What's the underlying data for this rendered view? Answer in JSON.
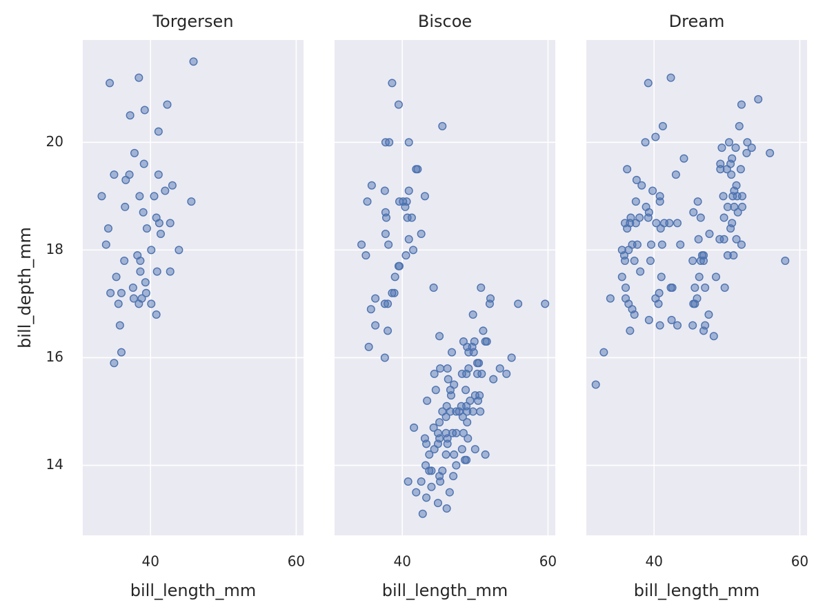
{
  "chart_data": [
    {
      "type": "scatter",
      "title": "Torgersen",
      "x_label": "bill_length_mm",
      "y_label": "bill_depth_mm",
      "color": "#4c72b0",
      "grid": true,
      "xlim": [
        30.7,
        61.0
      ],
      "ylim": [
        12.7,
        21.9
      ],
      "xticks": [
        40,
        60
      ],
      "yticks": [
        14,
        16,
        18,
        20
      ],
      "x": [
        34.4,
        38.4,
        45.9,
        42.3,
        37.2,
        39.2,
        41.1,
        37.8,
        35.0,
        37.1,
        36.6,
        39.1,
        41.1,
        43.0,
        42.0,
        33.3,
        38.5,
        40.5,
        45.6,
        36.5,
        39.0,
        40.8,
        41.2,
        42.7,
        41.4,
        34.2,
        39.5,
        33.9,
        40.1,
        43.9,
        38.2,
        38.6,
        36.4,
        38.6,
        40.9,
        42.7,
        35.3,
        39.3,
        37.6,
        34.5,
        36.0,
        39.4,
        37.7,
        38.8,
        38.4,
        35.6,
        40.1,
        40.8,
        35.8,
        36.0,
        35.0
      ],
      "values": [
        21.1,
        21.2,
        21.5,
        20.7,
        20.5,
        20.6,
        20.2,
        19.8,
        19.4,
        19.4,
        19.3,
        19.6,
        19.4,
        19.2,
        19.1,
        19.0,
        19.0,
        19.0,
        18.9,
        18.8,
        18.7,
        18.6,
        18.5,
        18.5,
        18.3,
        18.4,
        18.4,
        18.1,
        18.0,
        18.0,
        17.9,
        17.8,
        17.8,
        17.6,
        17.6,
        17.6,
        17.5,
        17.4,
        17.3,
        17.2,
        17.2,
        17.2,
        17.1,
        17.1,
        17.0,
        17.0,
        17.0,
        16.8,
        16.6,
        16.1,
        15.9
      ]
    },
    {
      "type": "scatter",
      "title": "Biscoe",
      "x_label": "bill_length_mm",
      "color": "#4c72b0",
      "grid": true,
      "xlim": [
        30.7,
        61.0
      ],
      "xticks": [
        40,
        60
      ],
      "x": [
        38.6,
        39.5,
        45.5,
        37.7,
        38.2,
        40.9,
        41.9,
        42.1,
        35.8,
        37.6,
        40.9,
        35.2,
        39.6,
        40.1,
        40.6,
        43.1,
        37.7,
        40.4,
        37.8,
        40.7,
        41.3,
        37.7,
        42.6,
        40.9,
        34.4,
        38.1,
        35.0,
        41.5,
        40.5,
        39.5,
        39.6,
        39.0,
        44.3,
        38.6,
        38.9,
        36.3,
        37.6,
        38.0,
        35.7,
        36.3,
        38.0,
        35.4,
        37.6,
        50.8,
        52.1,
        52.0,
        55.9,
        59.6,
        49.7,
        51.1,
        45.1,
        48.4,
        51.4,
        51.6,
        49.9,
        48.9,
        49.6,
        46.8,
        49.1,
        49.8,
        55.0,
        50.3,
        50.5,
        45.2,
        46.2,
        49.1,
        53.4,
        44.4,
        48.2,
        48.8,
        50.3,
        50.9,
        54.3,
        46.3,
        52.5,
        47.1,
        48.7,
        44.6,
        46.6,
        46.7,
        50.0,
        50.6,
        43.4,
        49.3,
        50.4,
        46.1,
        48.1,
        48.8,
        45.5,
        46.6,
        47.4,
        47.8,
        48.9,
        49.7,
        50.7,
        46.0,
        48.3,
        45.1,
        48.9,
        41.6,
        44.3,
        44.9,
        46.0,
        46.9,
        47.4,
        48.4,
        45.1,
        46.2,
        49.0,
        43.1,
        43.3,
        44.9,
        46.2,
        44.4,
        48.2,
        50.0,
        43.7,
        46.0,
        47.1,
        51.4,
        48.6,
        48.8,
        47.4,
        43.2,
        43.7,
        45.5,
        44.0,
        45.1,
        47.0,
        40.8,
        42.6,
        45.2,
        44.0,
        41.9,
        46.5,
        43.3,
        44.9,
        46.1,
        42.8
      ],
      "values": [
        21.1,
        20.7,
        20.3,
        20.0,
        20.0,
        20.0,
        19.5,
        19.5,
        19.2,
        19.1,
        19.1,
        18.9,
        18.9,
        18.9,
        18.9,
        19.0,
        18.7,
        18.8,
        18.6,
        18.6,
        18.6,
        18.3,
        18.3,
        18.2,
        18.1,
        18.1,
        17.9,
        18.0,
        17.9,
        17.7,
        17.7,
        17.5,
        17.3,
        17.2,
        17.2,
        17.1,
        17.0,
        17.0,
        16.9,
        16.6,
        16.5,
        16.2,
        16.0,
        17.3,
        17.1,
        17.0,
        17.0,
        17.0,
        16.8,
        16.5,
        16.4,
        16.3,
        16.3,
        16.3,
        16.3,
        16.2,
        16.2,
        16.1,
        16.1,
        16.1,
        16.0,
        15.9,
        15.9,
        15.8,
        15.8,
        15.8,
        15.8,
        15.7,
        15.7,
        15.7,
        15.7,
        15.7,
        15.7,
        15.6,
        15.6,
        15.5,
        15.4,
        15.4,
        15.4,
        15.3,
        15.3,
        15.3,
        15.2,
        15.2,
        15.2,
        15.1,
        15.1,
        15.1,
        15.0,
        15.0,
        15.0,
        15.0,
        15.0,
        15.0,
        15.0,
        14.9,
        14.9,
        14.8,
        14.8,
        14.7,
        14.7,
        14.6,
        14.6,
        14.6,
        14.6,
        14.6,
        14.5,
        14.5,
        14.5,
        14.5,
        14.4,
        14.4,
        14.4,
        14.3,
        14.3,
        14.3,
        14.2,
        14.2,
        14.2,
        14.2,
        14.1,
        14.1,
        14.0,
        14.0,
        13.9,
        13.9,
        13.9,
        13.8,
        13.8,
        13.7,
        13.7,
        13.7,
        13.6,
        13.5,
        13.5,
        13.4,
        13.3,
        13.2,
        13.1
      ]
    },
    {
      "type": "scatter",
      "title": "Dream",
      "x_label": "bill_length_mm",
      "color": "#4c72b0",
      "grid": true,
      "xlim": [
        30.7,
        61.0
      ],
      "xticks": [
        40,
        60
      ],
      "x": [
        42.3,
        39.2,
        54.3,
        52.0,
        41.2,
        51.7,
        40.2,
        38.8,
        50.3,
        52.8,
        53.4,
        49.3,
        51.2,
        55.9,
        52.7,
        44.1,
        50.7,
        50.5,
        49.1,
        36.3,
        49.1,
        50.0,
        51.9,
        43.0,
        50.6,
        37.6,
        51.3,
        38.3,
        39.8,
        51.0,
        40.8,
        49.5,
        50.8,
        51.4,
        52.1,
        37.5,
        40.8,
        46.0,
        38.9,
        50.1,
        51.0,
        52.1,
        39.3,
        51.5,
        45.4,
        36.8,
        38.0,
        39.2,
        46.4,
        49.6,
        36.0,
        36.7,
        37.5,
        40.3,
        41.4,
        42.1,
        43.2,
        50.7,
        36.3,
        40.9,
        50.5,
        47.6,
        46.1,
        49.0,
        49.6,
        51.3,
        37.0,
        37.7,
        39.6,
        41.1,
        43.6,
        52.0,
        35.6,
        36.5,
        35.9,
        46.6,
        46.8,
        50.1,
        50.9,
        36.0,
        37.3,
        39.5,
        45.3,
        46.4,
        46.8,
        58.0,
        38.1,
        35.6,
        41.0,
        48.5,
        46.2,
        36.1,
        42.3,
        42.5,
        45.6,
        47.0,
        49.7,
        40.7,
        34.0,
        36.1,
        40.2,
        45.9,
        36.5,
        40.6,
        45.4,
        45.6,
        37.0,
        37.3,
        47.5,
        39.3,
        42.4,
        40.8,
        43.2,
        45.3,
        47.0,
        36.7,
        46.8,
        48.2,
        33.1,
        32.0
      ],
      "values": [
        21.2,
        21.1,
        20.8,
        20.7,
        20.3,
        20.3,
        20.1,
        20.0,
        20.0,
        20.0,
        19.9,
        19.9,
        19.9,
        19.8,
        19.8,
        19.7,
        19.7,
        19.6,
        19.6,
        19.5,
        19.5,
        19.5,
        19.5,
        19.4,
        19.4,
        19.3,
        19.2,
        19.2,
        19.1,
        19.1,
        19.0,
        19.0,
        19.0,
        19.0,
        19.0,
        18.9,
        18.9,
        18.9,
        18.8,
        18.8,
        18.8,
        18.8,
        18.7,
        18.7,
        18.7,
        18.6,
        18.6,
        18.6,
        18.6,
        18.6,
        18.5,
        18.5,
        18.5,
        18.5,
        18.5,
        18.5,
        18.5,
        18.5,
        18.4,
        18.4,
        18.4,
        18.3,
        18.2,
        18.2,
        18.2,
        18.2,
        18.1,
        18.1,
        18.1,
        18.1,
        18.1,
        18.1,
        18.0,
        18.0,
        17.9,
        17.9,
        17.9,
        17.9,
        17.9,
        17.8,
        17.8,
        17.8,
        17.8,
        17.8,
        17.8,
        17.8,
        17.6,
        17.5,
        17.5,
        17.5,
        17.5,
        17.3,
        17.3,
        17.3,
        17.3,
        17.3,
        17.3,
        17.2,
        17.1,
        17.1,
        17.1,
        17.1,
        17.0,
        17.0,
        17.0,
        17.0,
        16.9,
        16.8,
        16.8,
        16.7,
        16.7,
        16.6,
        16.6,
        16.6,
        16.6,
        16.5,
        16.5,
        16.4,
        16.1,
        15.5
      ]
    }
  ]
}
